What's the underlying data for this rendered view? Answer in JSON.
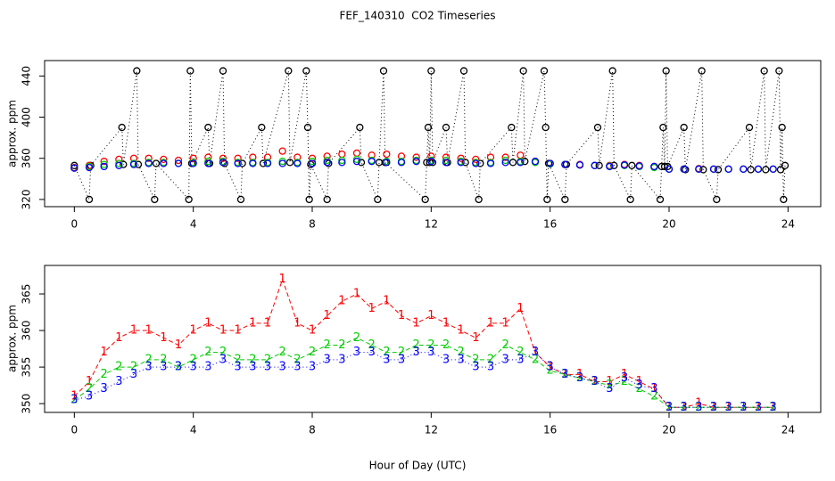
{
  "chart_data": [
    {
      "type": "scatter",
      "title": "FEF_140310  CO2 Timeseries",
      "ylabel": "approx. ppm",
      "xlim": [
        -1,
        25.1
      ],
      "ylim": [
        313,
        455
      ],
      "xticks": [
        0,
        4,
        8,
        12,
        16,
        20,
        24
      ],
      "yticks": [
        320,
        360,
        400,
        440
      ],
      "x": [
        0,
        0.5,
        1,
        1.5,
        2,
        2.5,
        3,
        3.5,
        4,
        4.5,
        5,
        5.5,
        6,
        6.5,
        7,
        7.5,
        8,
        8.5,
        9,
        9.5,
        10,
        10.5,
        11,
        11.5,
        12,
        12.5,
        13,
        13.5,
        14,
        14.5,
        15,
        15.5,
        16,
        16.5,
        17,
        17.5,
        18,
        18.5,
        19,
        19.5,
        20,
        20.5,
        21,
        21.5,
        22,
        22.5,
        23,
        23.5
      ],
      "series": [
        {
          "color": "#ff0000",
          "values": [
            351,
            353,
            357,
            359,
            360,
            360,
            359,
            358,
            360,
            361,
            360,
            360,
            361,
            361,
            367,
            361,
            360,
            362,
            364,
            365,
            363,
            364,
            362,
            361,
            362,
            361,
            360,
            359,
            361,
            361,
            363,
            357,
            355,
            354,
            354,
            353,
            353,
            354,
            353,
            352,
            349.5,
            349.5,
            350,
            349.5,
            349.5,
            349.5,
            349.5,
            349.5
          ]
        },
        {
          "color": "#00cc00",
          "values": [
            350.5,
            352,
            354,
            355,
            355,
            356,
            356,
            355,
            356,
            357,
            357,
            356,
            356,
            356,
            357,
            356,
            357,
            358,
            358,
            359,
            358,
            357,
            357,
            358,
            358,
            358,
            357,
            356,
            356,
            358,
            357,
            356,
            354.5,
            354,
            353.5,
            353,
            352.5,
            353,
            352,
            351,
            349.5,
            349.5,
            349.5,
            349.5,
            349.5,
            349.5,
            349.5,
            349.5
          ]
        },
        {
          "color": "#0000ff",
          "values": [
            350.5,
            351,
            352,
            353,
            354,
            355,
            355,
            355,
            355,
            355,
            356,
            355,
            355,
            355,
            355,
            355,
            355,
            356,
            356,
            357,
            357,
            356,
            356,
            357,
            357,
            356,
            356,
            355,
            355,
            356,
            356,
            357,
            355,
            354,
            353.5,
            353,
            352,
            353.5,
            352.5,
            352,
            349.5,
            349.5,
            349.5,
            349.5,
            349.5,
            349.5,
            349.5,
            349.5
          ]
        },
        {
          "color": "#000000",
          "line_style": "dotted",
          "x": [
            0,
            0.5,
            0.55,
            1.6,
            1.65,
            2.1,
            2.15,
            2.7,
            2.75,
            3.85,
            3.9,
            3.95,
            4.5,
            4.55,
            5,
            5.05,
            5.6,
            5.65,
            6.3,
            6.35,
            7.2,
            7.25,
            7.8,
            7.85,
            7.9,
            7.95,
            8.5,
            8.55,
            9.6,
            9.65,
            10.2,
            10.25,
            10.4,
            10.45,
            11.8,
            11.85,
            11.9,
            11.95,
            12,
            12.05,
            12.5,
            12.55,
            13.1,
            13.15,
            13.6,
            13.65,
            14.7,
            14.75,
            15.1,
            15.15,
            15.8,
            15.85,
            15.9,
            15.95,
            16.5,
            16.55,
            17.6,
            17.65,
            18.1,
            18.15,
            18.7,
            18.75,
            19.7,
            19.75,
            19.8,
            19.85,
            19.9,
            19.95,
            20.5,
            20.55,
            21.1,
            21.15,
            21.6,
            21.65,
            22.7,
            22.75,
            23.2,
            23.25,
            23.7,
            23.75,
            23.8,
            23.85,
            23.9
          ],
          "values": [
            353,
            320,
            353,
            390,
            354,
            445,
            354,
            320,
            355,
            320,
            445,
            355,
            390,
            355,
            445,
            355,
            320,
            355,
            390,
            355,
            445,
            356,
            445,
            390,
            320,
            354,
            320,
            355,
            390,
            356,
            320,
            356,
            445,
            356,
            320,
            356,
            390,
            356,
            445,
            356,
            390,
            356,
            445,
            356,
            320,
            355,
            390,
            356,
            445,
            357,
            445,
            390,
            320,
            355,
            320,
            354,
            390,
            353,
            445,
            353,
            320,
            353,
            320,
            352,
            390,
            352,
            445,
            352,
            390,
            349,
            445,
            349,
            320,
            349,
            390,
            349,
            445,
            349,
            445,
            349,
            390,
            320,
            353
          ]
        }
      ]
    },
    {
      "type": "line",
      "ylabel": "approx. ppm",
      "xlabel": "Hour of Day (UTC)",
      "xlim": [
        -1,
        25.1
      ],
      "ylim": [
        348.8,
        368.9
      ],
      "xticks": [
        0,
        4,
        8,
        12,
        16,
        20,
        24
      ],
      "yticks": [
        350,
        355,
        360,
        365
      ],
      "x": [
        0,
        0.5,
        1,
        1.5,
        2,
        2.5,
        3,
        3.5,
        4,
        4.5,
        5,
        5.5,
        6,
        6.5,
        7,
        7.5,
        8,
        8.5,
        9,
        9.5,
        10,
        10.5,
        11,
        11.5,
        12,
        12.5,
        13,
        13.5,
        14,
        14.5,
        15,
        15.5,
        16,
        16.5,
        17,
        17.5,
        18,
        18.5,
        19,
        19.5,
        20,
        20.5,
        21,
        21.5,
        22,
        22.5,
        23,
        23.5
      ],
      "series": [
        {
          "color": "#ff0000",
          "marker": "1",
          "line_style": "dashed",
          "values": [
            351,
            353,
            357,
            359,
            360,
            360,
            359,
            358,
            360,
            361,
            360,
            360,
            361,
            361,
            367,
            361,
            360,
            362,
            364,
            365,
            363,
            364,
            362,
            361,
            362,
            361,
            360,
            359,
            361,
            361,
            363,
            357,
            355,
            354,
            354,
            353,
            353,
            354,
            353,
            352,
            349.5,
            349.5,
            350,
            349.5,
            349.5,
            349.5,
            349.5,
            349.5
          ]
        },
        {
          "color": "#00cc00",
          "marker": "2",
          "line_style": "dashed",
          "values": [
            350.5,
            352,
            354,
            355,
            355,
            356,
            356,
            355,
            356,
            357,
            357,
            356,
            356,
            356,
            357,
            356,
            357,
            358,
            358,
            359,
            358,
            357,
            357,
            358,
            358,
            358,
            357,
            356,
            356,
            358,
            357,
            356,
            354.5,
            354,
            353.5,
            353,
            352.5,
            353,
            352,
            351,
            349.5,
            349.5,
            349.5,
            349.5,
            349.5,
            349.5,
            349.5,
            349.5
          ]
        },
        {
          "color": "#0000ff",
          "marker": "3",
          "line_style": "dotted",
          "values": [
            350.5,
            351,
            352,
            353,
            354,
            355,
            355,
            355,
            355,
            355,
            356,
            355,
            355,
            355,
            355,
            355,
            355,
            356,
            356,
            357,
            357,
            356,
            356,
            357,
            357,
            356,
            356,
            355,
            355,
            356,
            356,
            357,
            355,
            354,
            353.5,
            353,
            352,
            353.5,
            352.5,
            352,
            349.5,
            349.5,
            349.5,
            349.5,
            349.5,
            349.5,
            349.5,
            349.5
          ]
        }
      ]
    }
  ]
}
